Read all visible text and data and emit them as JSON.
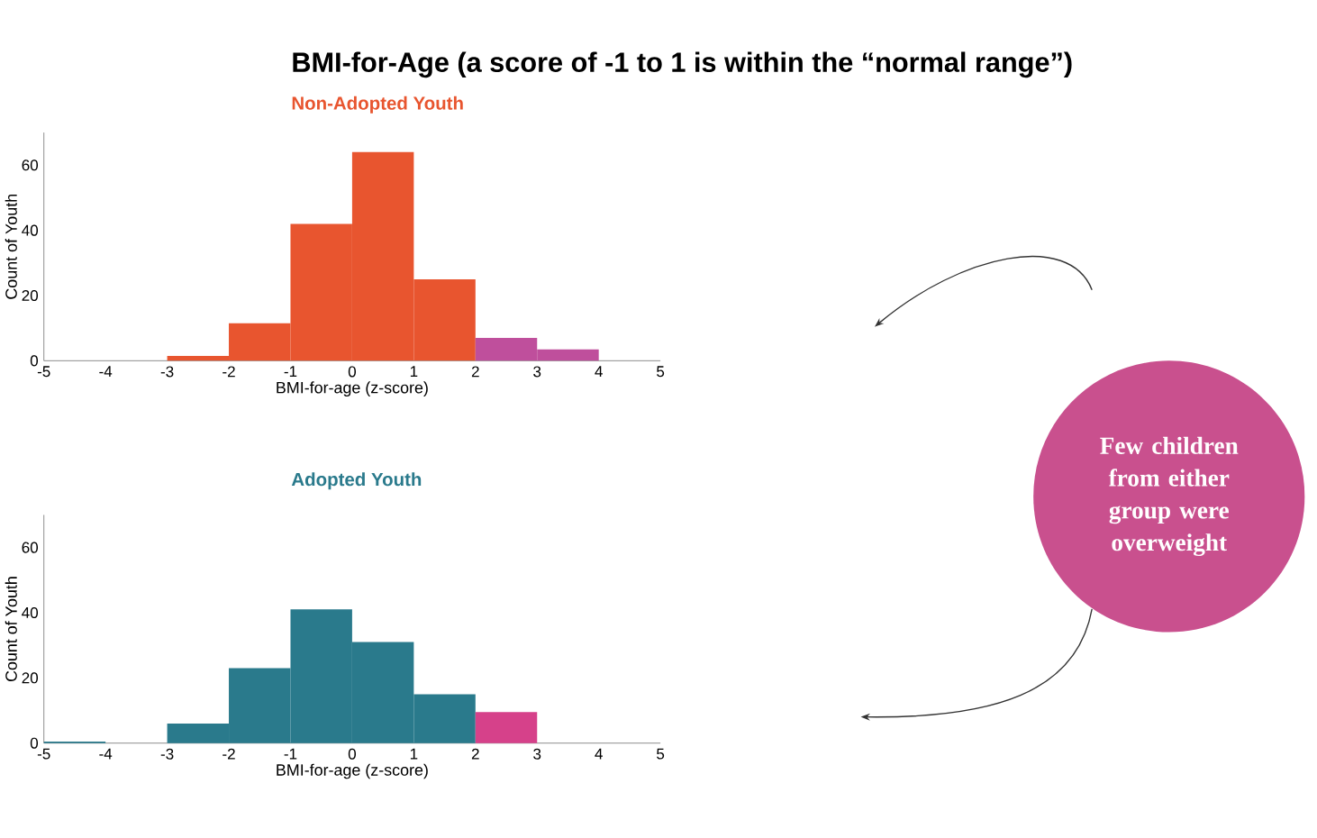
{
  "chart_data": [
    {
      "type": "histogram",
      "title": "BMI-for-Age (a score of -1 to 1 is within the “normal range”)",
      "subtitle": "Non-Adopted Youth",
      "xlabel": "BMI-for-age (z-score)",
      "ylabel": "Count of Youth",
      "bins": [
        -5,
        -4,
        -3,
        -2,
        -1,
        0,
        1,
        2,
        3,
        4,
        5
      ],
      "values": [
        0,
        0,
        1.5,
        11.5,
        42,
        64,
        25,
        7,
        3.5,
        0
      ],
      "colors": [
        "#e8552f",
        "#e8552f",
        "#e8552f",
        "#e8552f",
        "#e8552f",
        "#e8552f",
        "#e8552f",
        "#bf4f9c",
        "#bf4f9c",
        "#bf4f9c"
      ],
      "xlim": [
        -5,
        5
      ],
      "ylim": [
        0,
        70
      ],
      "xticks": [
        -5,
        -4,
        -3,
        -2,
        -1,
        0,
        1,
        2,
        3,
        4,
        5
      ],
      "yticks": [
        0,
        20,
        40,
        60
      ],
      "annotations": [
        "Few children from either group were overweight"
      ]
    },
    {
      "type": "histogram",
      "title": "Adopted Youth",
      "xlabel": "BMI-for-age (z-score)",
      "ylabel": "Count of Youth",
      "bins": [
        -5,
        -4,
        -3,
        -2,
        -1,
        0,
        1,
        2,
        3,
        4,
        5
      ],
      "values": [
        0.5,
        0,
        6,
        23,
        41,
        31,
        15,
        9.5,
        0,
        0
      ],
      "colors": [
        "#2a7a8c",
        "#2a7a8c",
        "#2a7a8c",
        "#2a7a8c",
        "#2a7a8c",
        "#2a7a8c",
        "#2a7a8c",
        "#d6418a",
        "#d6418a",
        "#d6418a"
      ],
      "xlim": [
        -5,
        5
      ],
      "ylim": [
        0,
        70
      ],
      "xticks": [
        -5,
        -4,
        -3,
        -2,
        -1,
        0,
        1,
        2,
        3,
        4,
        5
      ],
      "yticks": [
        0,
        20,
        40,
        60
      ]
    }
  ]
}
